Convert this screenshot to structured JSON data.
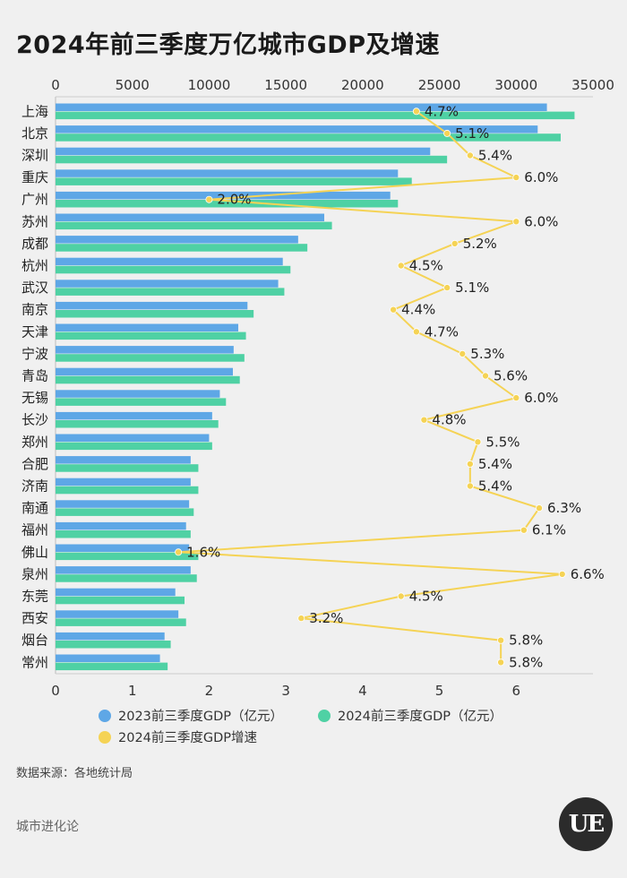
{
  "title": "2024年前三季度万亿城市GDP及增速",
  "colors": {
    "gdp2023": "#5ea7e6",
    "gdp2024": "#4fd1a4",
    "growth": "#f5d355",
    "background": "#f0f0f0"
  },
  "chart_data": {
    "type": "bar",
    "orientation": "horizontal",
    "categories": [
      "上海",
      "北京",
      "深圳",
      "重庆",
      "广州",
      "苏州",
      "成都",
      "杭州",
      "武汉",
      "南京",
      "天津",
      "宁波",
      "青岛",
      "无锡",
      "长沙",
      "郑州",
      "合肥",
      "济南",
      "南通",
      "福州",
      "佛山",
      "泉州",
      "东莞",
      "西安",
      "烟台",
      "常州"
    ],
    "series": [
      {
        "name": "2023前三季度GDP（亿元）",
        "axis": "top",
        "color": "#5ea7e6",
        "values": [
          32000,
          31400,
          24400,
          22300,
          21800,
          17500,
          15800,
          14800,
          14500,
          12500,
          11900,
          11600,
          11550,
          10700,
          10200,
          10000,
          8800,
          8800,
          8700,
          8500,
          8700,
          8800,
          7800,
          8000,
          7100,
          6800
        ]
      },
      {
        "name": "2024前三季度GDP（亿元）",
        "axis": "top",
        "color": "#4fd1a4",
        "values": [
          33800,
          32900,
          25500,
          23200,
          22300,
          18000,
          16400,
          15300,
          14900,
          12900,
          12400,
          12300,
          12000,
          11100,
          10600,
          10200,
          9300,
          9300,
          9000,
          8800,
          9300,
          9200,
          8400,
          8500,
          7500,
          7300
        ]
      },
      {
        "name": "2024前三季度GDP增速",
        "axis": "bottom",
        "color": "#f5d355",
        "type": "line",
        "values": [
          4.7,
          5.1,
          5.4,
          6.0,
          2.0,
          6.0,
          5.2,
          4.5,
          5.1,
          4.4,
          4.7,
          5.3,
          5.6,
          6.0,
          4.8,
          5.5,
          5.4,
          5.4,
          6.3,
          6.1,
          1.6,
          6.6,
          4.5,
          3.2,
          5.8,
          5.8
        ],
        "labels": [
          "4.7%",
          "5.1%",
          "5.4%",
          "6.0%",
          "2.0%",
          "6.0%",
          "5.2%",
          "4.5%",
          "5.1%",
          "4.4%",
          "4.7%",
          "5.3%",
          "5.6%",
          "6.0%",
          "4.8%",
          "5.5%",
          "5.4%",
          "5.4%",
          "6.3%",
          "6.1%",
          "1.6%",
          "6.6%",
          "4.5%",
          "3.2%",
          "5.8%",
          "5.8%"
        ]
      }
    ],
    "top_axis": {
      "ticks": [
        0,
        5000,
        10000,
        15000,
        20000,
        25000,
        30000,
        35000
      ],
      "range": [
        0,
        35000
      ]
    },
    "bottom_axis": {
      "ticks": [
        0,
        1,
        2,
        3,
        4,
        5,
        6
      ],
      "range": [
        0,
        7
      ]
    },
    "legend_placement": "bottom"
  },
  "source": "数据来源：各地统计局",
  "brand": "城市进化论",
  "logo_text": "UE"
}
